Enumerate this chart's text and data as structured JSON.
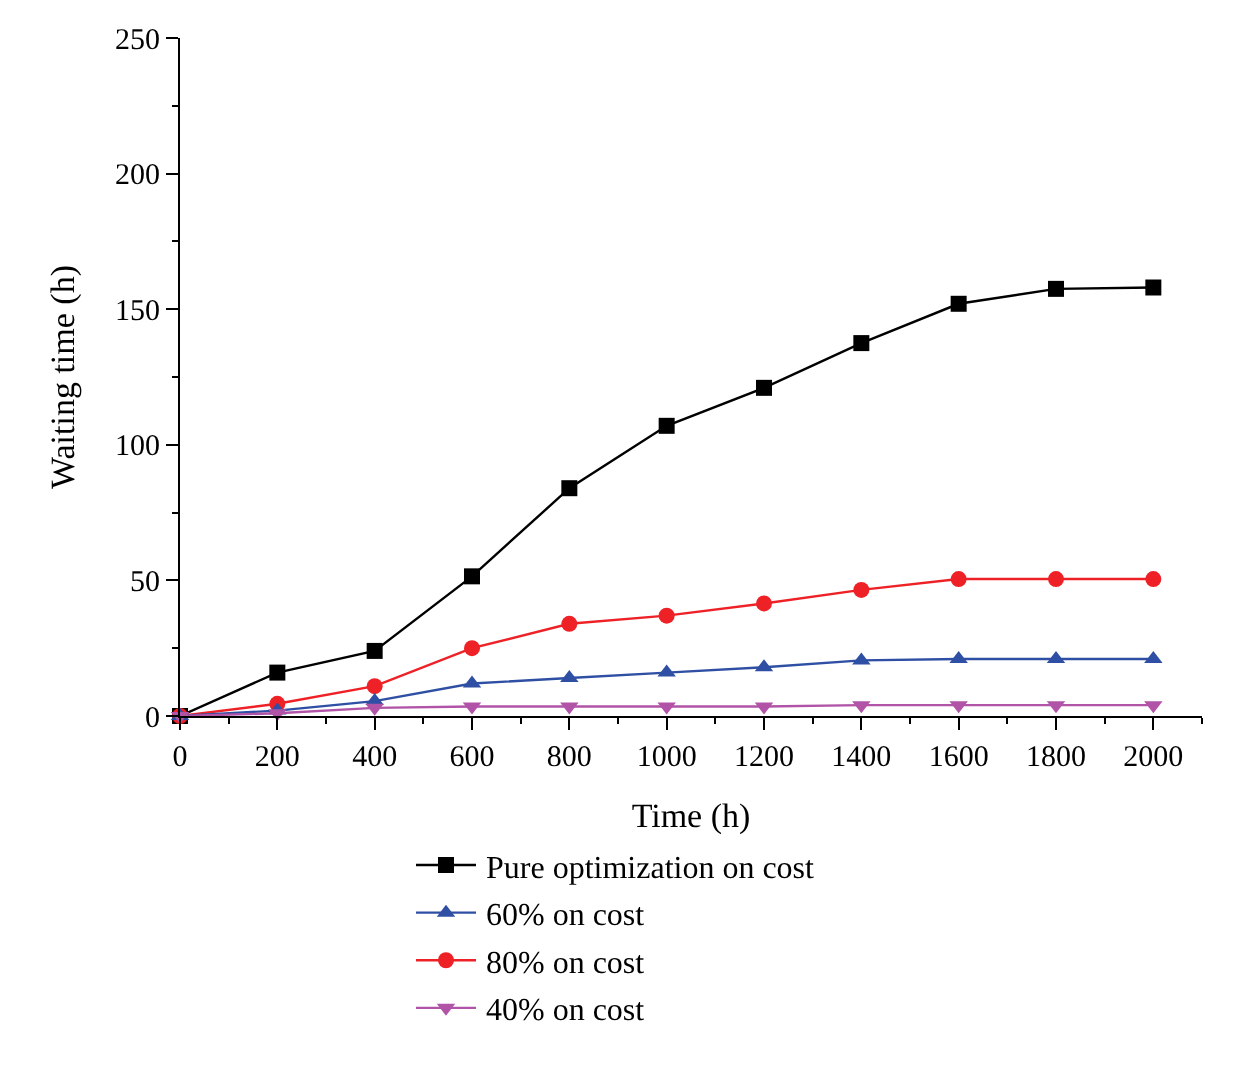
{
  "chart_data": {
    "type": "line",
    "xlabel": "Time (h)",
    "ylabel": "Waiting time (h)",
    "x": [
      0,
      200,
      400,
      600,
      800,
      1000,
      1200,
      1400,
      1600,
      1800,
      2000
    ],
    "series": [
      {
        "name": "Pure optimization on cost",
        "color": "#000000",
        "marker": "square",
        "values": [
          0,
          16,
          24,
          51.5,
          84,
          107,
          121,
          137.5,
          152,
          157.5,
          158
        ]
      },
      {
        "name": "80% on cost",
        "color": "#ee2127",
        "marker": "circle",
        "values": [
          0,
          4.5,
          11,
          25,
          34,
          37,
          41.5,
          46.5,
          50.5,
          50.5,
          50.5
        ]
      },
      {
        "name": "60% on cost",
        "color": "#2e4fa3",
        "marker": "triangle",
        "values": [
          0,
          2,
          5.5,
          12,
          14,
          16,
          18,
          20.5,
          21,
          21,
          21
        ]
      },
      {
        "name": "40% on cost",
        "color": "#b154a8",
        "marker": "triangle-down",
        "values": [
          0,
          1,
          3,
          3.5,
          3.5,
          3.5,
          3.5,
          4,
          4,
          4,
          4
        ]
      }
    ],
    "xlim": [
      0,
      2100
    ],
    "xticks": [
      0,
      200,
      400,
      600,
      800,
      1000,
      1200,
      1400,
      1600,
      1800,
      2000
    ],
    "ylim": [
      0,
      250
    ],
    "yticks": [
      0,
      50,
      100,
      150,
      200,
      250
    ],
    "legend": "bottom",
    "line_style": "solid"
  }
}
